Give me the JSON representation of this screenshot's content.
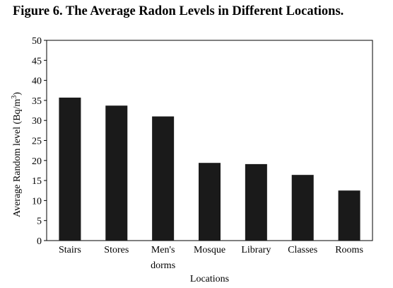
{
  "chart_data": {
    "type": "bar",
    "title": "Figure 6. The Average Radon Levels in Different Locations.",
    "xlabel": "Locations",
    "ylabel": "Average Random level (Bq/m",
    "ylabel_sup": "3",
    "ylabel_end": ")",
    "categories": [
      "Stairs",
      "Stores",
      "Men's dorms",
      "Mosque",
      "Library",
      "Classes",
      "Rooms"
    ],
    "category_lines": [
      [
        "Stairs"
      ],
      [
        "Stores"
      ],
      [
        "Men's",
        "dorms"
      ],
      [
        "Mosque"
      ],
      [
        "Library"
      ],
      [
        "Classes"
      ],
      [
        "Rooms"
      ]
    ],
    "values": [
      35.7,
      33.7,
      31.0,
      19.4,
      19.1,
      16.4,
      12.5
    ],
    "ylim": [
      0,
      50
    ],
    "yticks": [
      0,
      5,
      10,
      15,
      20,
      25,
      30,
      35,
      40,
      45,
      50
    ],
    "grid": false,
    "bar_color": "#1a1a1a"
  }
}
